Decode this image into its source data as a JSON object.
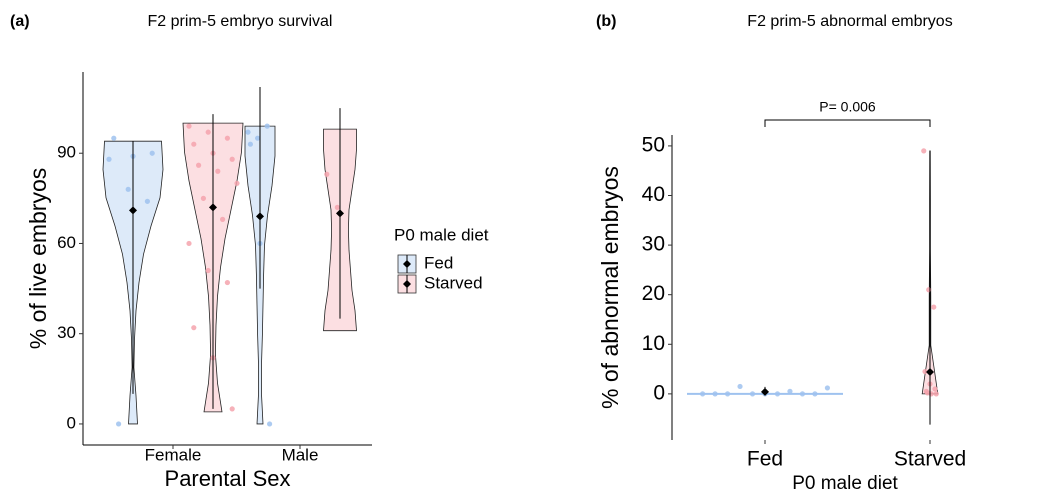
{
  "chart_data": [
    {
      "type": "violin",
      "panel_label": "(a)",
      "title": "F2 prim-5 embryo survival",
      "xlabel": "Parental Sex",
      "ylabel": "% of live embryos",
      "categories": [
        "Female",
        "Male"
      ],
      "ylim": [
        -7,
        117
      ],
      "yticks": [
        0,
        30,
        60,
        90
      ],
      "legend": {
        "title": "P0 male diet",
        "position": "right"
      },
      "series": [
        {
          "name": "Fed",
          "color": "#9fc2ef",
          "means": [
            71,
            69
          ],
          "lows": [
            10,
            45
          ],
          "highs": [
            94,
            112
          ],
          "violins": [
            {
              "range": [
                0,
                94
              ],
              "density": [
                0.15,
                0.1,
                0.03,
                0.05,
                0.1,
                0.2,
                0.35,
                0.6,
                0.9,
                1.0,
                0.95
              ]
            },
            {
              "range": [
                0,
                99
              ],
              "density": [
                0.1,
                0.05,
                0.05,
                0.08,
                0.1,
                0.12,
                0.15,
                0.25,
                0.4,
                0.5,
                0.5
              ]
            }
          ],
          "points": [
            [
              88,
              78,
              74,
              95,
              89,
              90,
              0
            ],
            [
              97,
              95,
              99,
              93,
              60,
              0
            ]
          ]
        },
        {
          "name": "Starved",
          "color": "#f5a3ad",
          "means": [
            72,
            70
          ],
          "lows": [
            5,
            35
          ],
          "highs": [
            103,
            105
          ],
          "violins": [
            {
              "range": [
                4,
                100
              ],
              "density": [
                0.3,
                0.15,
                0.08,
                0.1,
                0.15,
                0.25,
                0.4,
                0.6,
                0.8,
                0.95,
                1.0
              ]
            },
            {
              "range": [
                31,
                98
              ],
              "density": [
                0.55,
                0.5,
                0.4,
                0.35,
                0.3,
                0.28,
                0.3,
                0.4,
                0.5,
                0.55,
                0.55
              ]
            }
          ],
          "points": [
            [
              99,
              97,
              95,
              93,
              90,
              88,
              86,
              84,
              80,
              75,
              68,
              60,
              51,
              47,
              32,
              22,
              5
            ],
            [
              83,
              72
            ]
          ]
        }
      ]
    },
    {
      "type": "violin",
      "panel_label": "(b)",
      "title": "F2 prim-5 abnormal embryos",
      "xlabel": "P0 male diet",
      "ylabel": "% of abnormal embryos",
      "categories": [
        "Fed",
        "Starved"
      ],
      "ylim": [
        -9.3,
        52.2
      ],
      "yticks": [
        0,
        10,
        20,
        30,
        40,
        50
      ],
      "annotation": "P= 0.006",
      "series": [
        {
          "colors": [
            "#9fc2ef",
            "#f5a3ad"
          ],
          "means": [
            0.4,
            4.4
          ],
          "lows": [
            0,
            -6.2
          ],
          "highs": [
            1.4,
            49
          ],
          "violins": [
            {
              "range": [
                0,
                0
              ],
              "density": [
                1
              ]
            },
            {
              "range": [
                0,
                49
              ],
              "density": [
                0.1,
                0.01,
                0.01,
                0.005,
                0.005,
                0.003
              ]
            }
          ],
          "points": [
            [
              0,
              0,
              0,
              0,
              0,
              0,
              0,
              0,
              1.2,
              1.5,
              0.5
            ],
            [
              49,
              21,
              17.5,
              4.5,
              2,
              1,
              0.5,
              0,
              0,
              0.2
            ]
          ]
        }
      ]
    }
  ]
}
